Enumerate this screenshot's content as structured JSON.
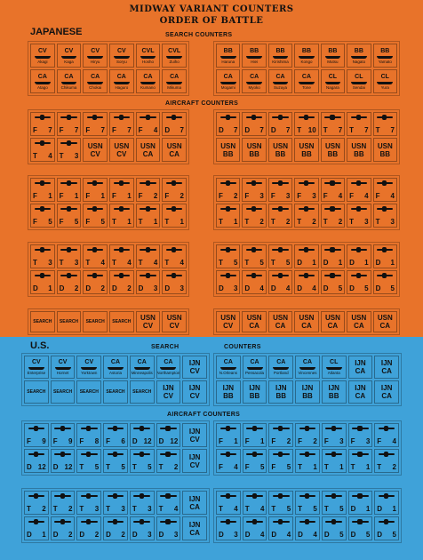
{
  "header": {
    "line1": "MIDWAY VARIANT COUNTERS",
    "line2": "ORDER OF BATTLE"
  },
  "japanese": {
    "nation": "JAPANESE",
    "search_title": "SEARCH COUNTERS",
    "aircraft_title": "AIRCRAFT COUNTERS",
    "ships_left": [
      [
        {
          "t": "CV",
          "n": "Akagi"
        },
        {
          "t": "CV",
          "n": "Kaga"
        },
        {
          "t": "CV",
          "n": "Hiryu"
        },
        {
          "t": "CV",
          "n": "Soryu"
        },
        {
          "t": "CVL",
          "n": "Hosho"
        },
        {
          "t": "CVL",
          "n": "Zuiho"
        }
      ],
      [
        {
          "t": "CA",
          "n": "Atago"
        },
        {
          "t": "CA",
          "n": "Chikuma"
        },
        {
          "t": "CA",
          "n": "Chokai"
        },
        {
          "t": "CA",
          "n": "Haguro"
        },
        {
          "t": "CA",
          "n": "Kumano"
        },
        {
          "t": "CA",
          "n": "Mikuma"
        }
      ]
    ],
    "ships_right": [
      [
        {
          "t": "BB",
          "n": "Haruna"
        },
        {
          "t": "BB",
          "n": "Hiei"
        },
        {
          "t": "BB",
          "n": "Kirishima"
        },
        {
          "t": "BB",
          "n": "Kongo"
        },
        {
          "t": "BB",
          "n": "Mutsu"
        },
        {
          "t": "BB",
          "n": "Nagato"
        },
        {
          "t": "BB",
          "n": "Yamato"
        }
      ],
      [
        {
          "t": "CA",
          "n": "Mogami"
        },
        {
          "t": "CA",
          "n": "Myoko"
        },
        {
          "t": "CA",
          "n": "Suzuya"
        },
        {
          "t": "CA",
          "n": "Tone"
        },
        {
          "t": "CL",
          "n": "Nagara"
        },
        {
          "t": "CL",
          "n": "Sendai"
        },
        {
          "t": "CL",
          "n": "Yura"
        }
      ]
    ],
    "a1_left": [
      [
        {
          "l": "F",
          "r": "7"
        },
        {
          "l": "F",
          "r": "7"
        },
        {
          "l": "F",
          "r": "7"
        },
        {
          "l": "F",
          "r": "7"
        },
        {
          "l": "F",
          "r": "4"
        },
        {
          "l": "D",
          "r": "7"
        }
      ],
      [
        {
          "l": "T",
          "r": "4"
        },
        {
          "l": "T",
          "r": "3"
        },
        {
          "b": "USN CV"
        },
        {
          "b": "USN CV"
        },
        {
          "b": "USN CA"
        },
        {
          "b": "USN CA"
        }
      ]
    ],
    "a1_right": [
      [
        {
          "l": "D",
          "r": "7"
        },
        {
          "l": "D",
          "r": "7"
        },
        {
          "l": "D",
          "r": "7"
        },
        {
          "l": "T",
          "r": "10"
        },
        {
          "l": "T",
          "r": "7"
        },
        {
          "l": "T",
          "r": "7"
        },
        {
          "l": "T",
          "r": "7"
        }
      ],
      [
        {
          "b": "USN BB"
        },
        {
          "b": "USN BB"
        },
        {
          "b": "USN BB"
        },
        {
          "b": "USN BB"
        },
        {
          "b": "USN BB"
        },
        {
          "b": "USN BB"
        },
        {
          "b": "USN BB"
        }
      ]
    ],
    "a2_left": [
      [
        {
          "l": "F",
          "r": "1"
        },
        {
          "l": "F",
          "r": "1"
        },
        {
          "l": "F",
          "r": "1"
        },
        {
          "l": "F",
          "r": "1"
        },
        {
          "l": "F",
          "r": "2"
        },
        {
          "l": "F",
          "r": "2"
        }
      ],
      [
        {
          "l": "F",
          "r": "5"
        },
        {
          "l": "F",
          "r": "5"
        },
        {
          "l": "F",
          "r": "5"
        },
        {
          "l": "T",
          "r": "1"
        },
        {
          "l": "T",
          "r": "1"
        },
        {
          "l": "T",
          "r": "1"
        }
      ]
    ],
    "a2_right": [
      [
        {
          "l": "F",
          "r": "2"
        },
        {
          "l": "F",
          "r": "3"
        },
        {
          "l": "F",
          "r": "3"
        },
        {
          "l": "F",
          "r": "3"
        },
        {
          "l": "F",
          "r": "4"
        },
        {
          "l": "F",
          "r": "4"
        },
        {
          "l": "F",
          "r": "4"
        }
      ],
      [
        {
          "l": "T",
          "r": "1"
        },
        {
          "l": "T",
          "r": "2"
        },
        {
          "l": "T",
          "r": "2"
        },
        {
          "l": "T",
          "r": "2"
        },
        {
          "l": "T",
          "r": "2"
        },
        {
          "l": "T",
          "r": "3"
        },
        {
          "l": "T",
          "r": "3"
        }
      ]
    ],
    "a3_left": [
      [
        {
          "l": "T",
          "r": "3"
        },
        {
          "l": "T",
          "r": "3"
        },
        {
          "l": "T",
          "r": "4"
        },
        {
          "l": "T",
          "r": "4"
        },
        {
          "l": "T",
          "r": "4"
        },
        {
          "l": "T",
          "r": "4"
        }
      ],
      [
        {
          "l": "D",
          "r": "1"
        },
        {
          "l": "D",
          "r": "2"
        },
        {
          "l": "D",
          "r": "2"
        },
        {
          "l": "D",
          "r": "2"
        },
        {
          "l": "D",
          "r": "3"
        },
        {
          "l": "D",
          "r": "3"
        }
      ]
    ],
    "a3_right": [
      [
        {
          "l": "T",
          "r": "5"
        },
        {
          "l": "T",
          "r": "5"
        },
        {
          "l": "T",
          "r": "5"
        },
        {
          "l": "D",
          "r": "1"
        },
        {
          "l": "D",
          "r": "1"
        },
        {
          "l": "D",
          "r": "1"
        },
        {
          "l": "D",
          "r": "1"
        }
      ],
      [
        {
          "l": "D",
          "r": "3"
        },
        {
          "l": "D",
          "r": "4"
        },
        {
          "l": "D",
          "r": "4"
        },
        {
          "l": "D",
          "r": "4"
        },
        {
          "l": "D",
          "r": "5"
        },
        {
          "l": "D",
          "r": "5"
        },
        {
          "l": "D",
          "r": "5"
        }
      ]
    ],
    "a4_left": [
      [
        {
          "s": "SEARCH"
        },
        {
          "s": "SEARCH"
        },
        {
          "s": "SEARCH"
        },
        {
          "s": "SEARCH"
        },
        {
          "b": "USN CV"
        },
        {
          "b": "USN CV"
        }
      ]
    ],
    "a4_right": [
      [
        {
          "b": "USN CV"
        },
        {
          "b": "USN CA"
        },
        {
          "b": "USN CA"
        },
        {
          "b": "USN CA"
        },
        {
          "b": "USN CA"
        },
        {
          "b": "USN CA"
        },
        {
          "b": "USN CA"
        }
      ]
    ]
  },
  "us": {
    "nation": "U.S.",
    "search_title_a": "SEARCH",
    "search_title_b": "COUNTERS",
    "aircraft_title": "AIRCRAFT COUNTERS",
    "ships_left": [
      [
        {
          "t": "CV",
          "n": "Enterprise"
        },
        {
          "t": "CV",
          "n": "Hornet"
        },
        {
          "t": "CV",
          "n": "Yorktown"
        },
        {
          "t": "CA",
          "n": "Astoria"
        },
        {
          "t": "CA",
          "n": "Minneapolis"
        },
        {
          "t": "CA",
          "n": "Northampton"
        },
        {
          "b": "IJN CV"
        }
      ],
      [
        {
          "s": "SEARCH"
        },
        {
          "s": "SEARCH"
        },
        {
          "s": "SEARCH"
        },
        {
          "s": "SEARCH"
        },
        {
          "s": "SEARCH"
        },
        {
          "b": "IJN CV"
        },
        {
          "b": "IJN CV"
        }
      ]
    ],
    "ships_right": [
      [
        {
          "t": "CA",
          "n": "N.Orleans"
        },
        {
          "t": "CA",
          "n": "Pensacola"
        },
        {
          "t": "CA",
          "n": "Portland"
        },
        {
          "t": "CA",
          "n": "Vincennes"
        },
        {
          "t": "CL",
          "n": "Atlanta"
        },
        {
          "b": "IJN CA"
        },
        {
          "b": "IJN CA"
        }
      ],
      [
        {
          "b": "IJN BB"
        },
        {
          "b": "IJN BB"
        },
        {
          "b": "IJN BB"
        },
        {
          "b": "IJN BB"
        },
        {
          "b": "IJN BB"
        },
        {
          "b": "IJN CA"
        },
        {
          "b": "IJN CA"
        }
      ]
    ],
    "a1_left": [
      [
        {
          "l": "F",
          "r": "9"
        },
        {
          "l": "F",
          "r": "9"
        },
        {
          "l": "F",
          "r": "8"
        },
        {
          "l": "F",
          "r": "6"
        },
        {
          "l": "D",
          "r": "12"
        },
        {
          "l": "D",
          "r": "12"
        },
        {
          "b": "IJN CV"
        }
      ],
      [
        {
          "l": "D",
          "r": "12"
        },
        {
          "l": "D",
          "r": "12"
        },
        {
          "l": "T",
          "r": "5"
        },
        {
          "l": "T",
          "r": "5"
        },
        {
          "l": "T",
          "r": "5"
        },
        {
          "l": "T",
          "r": "2"
        },
        {
          "b": "IJN CV"
        }
      ]
    ],
    "a1_right": [
      [
        {
          "l": "F",
          "r": "1"
        },
        {
          "l": "F",
          "r": "1"
        },
        {
          "l": "F",
          "r": "2"
        },
        {
          "l": "F",
          "r": "2"
        },
        {
          "l": "F",
          "r": "3"
        },
        {
          "l": "F",
          "r": "3"
        },
        {
          "l": "F",
          "r": "4"
        }
      ],
      [
        {
          "l": "F",
          "r": "4"
        },
        {
          "l": "F",
          "r": "5"
        },
        {
          "l": "F",
          "r": "5"
        },
        {
          "l": "T",
          "r": "1"
        },
        {
          "l": "T",
          "r": "1"
        },
        {
          "l": "T",
          "r": "1"
        },
        {
          "l": "T",
          "r": "2"
        }
      ]
    ],
    "a2_left": [
      [
        {
          "l": "T",
          "r": "2"
        },
        {
          "l": "T",
          "r": "2"
        },
        {
          "l": "T",
          "r": "3"
        },
        {
          "l": "T",
          "r": "3"
        },
        {
          "l": "T",
          "r": "3"
        },
        {
          "l": "T",
          "r": "4"
        },
        {
          "b": "IJN CA"
        }
      ],
      [
        {
          "l": "D",
          "r": "1"
        },
        {
          "l": "D",
          "r": "2"
        },
        {
          "l": "D",
          "r": "2"
        },
        {
          "l": "D",
          "r": "2"
        },
        {
          "l": "D",
          "r": "3"
        },
        {
          "l": "D",
          "r": "3"
        },
        {
          "b": "IJN CA"
        }
      ]
    ],
    "a2_right": [
      [
        {
          "l": "T",
          "r": "4"
        },
        {
          "l": "T",
          "r": "4"
        },
        {
          "l": "T",
          "r": "5"
        },
        {
          "l": "T",
          "r": "5"
        },
        {
          "l": "T",
          "r": "5"
        },
        {
          "l": "D",
          "r": "1"
        },
        {
          "l": "D",
          "r": "1"
        }
      ],
      [
        {
          "l": "D",
          "r": "3"
        },
        {
          "l": "D",
          "r": "4"
        },
        {
          "l": "D",
          "r": "4"
        },
        {
          "l": "D",
          "r": "4"
        },
        {
          "l": "D",
          "r": "5"
        },
        {
          "l": "D",
          "r": "5"
        },
        {
          "l": "D",
          "r": "5"
        }
      ]
    ]
  }
}
